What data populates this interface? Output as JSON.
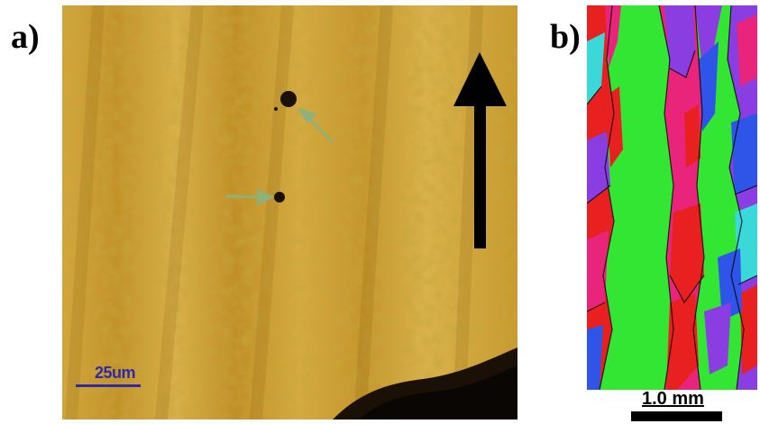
{
  "figure": {
    "panel_a": {
      "label": "a)",
      "scale_bar_text": "25um",
      "colors": {
        "background": "#c89a2a",
        "scale_bar": "#2f2aa8",
        "arrow": "#000000",
        "pointer_arrows": "#8fb07a"
      },
      "icons": [
        "build-direction-arrow-icon",
        "pore-pointer-arrow-icon",
        "pore-pointer-arrow-icon"
      ]
    },
    "panel_b": {
      "label": "b)",
      "scale_bar_text": "1.0 mm",
      "colors": {
        "green": "#33e633",
        "magenta": "#e8257a",
        "purple": "#8a3de0",
        "red": "#e82020",
        "blue": "#2e55e8",
        "cyan": "#3ad8d8"
      }
    }
  }
}
